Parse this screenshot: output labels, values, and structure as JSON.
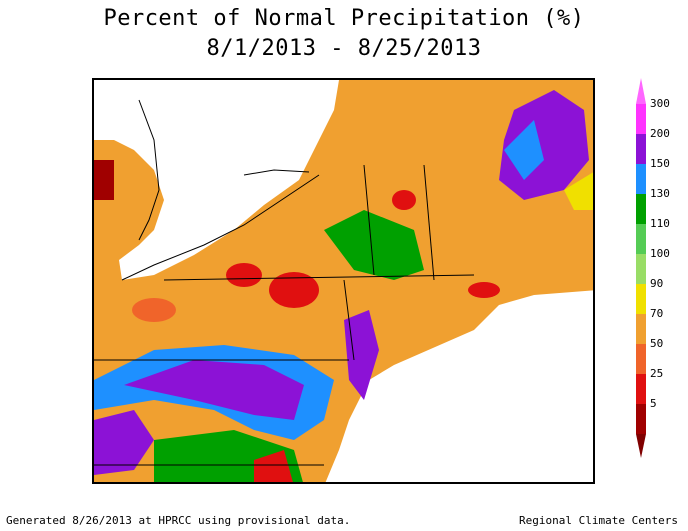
{
  "title": {
    "line1": "Percent of Normal Precipitation (%)",
    "line2": "8/1/2013 - 8/25/2013"
  },
  "legend": {
    "bins": [
      {
        "label": "300",
        "color": "#ff33ff"
      },
      {
        "label": "200",
        "color": "#8c12d6"
      },
      {
        "label": "150",
        "color": "#1e90ff"
      },
      {
        "label": "130",
        "color": "#00a000"
      },
      {
        "label": "110",
        "color": "#55cc55"
      },
      {
        "label": "100",
        "color": "#99dd66"
      },
      {
        "label": "90",
        "color": "#f0e000"
      },
      {
        "label": "70",
        "color": "#f0a030"
      },
      {
        "label": "50",
        "color": "#f0642a"
      },
      {
        "label": "25",
        "color": "#e01010"
      },
      {
        "label": "5",
        "color": "#a00000"
      }
    ],
    "top_arrow_color": "#ff66ff",
    "bottom_arrow_color": "#800000"
  },
  "footer": {
    "left": "Generated 8/26/2013 at HPRCC using provisional data.",
    "right": "Regional Climate Centers"
  }
}
